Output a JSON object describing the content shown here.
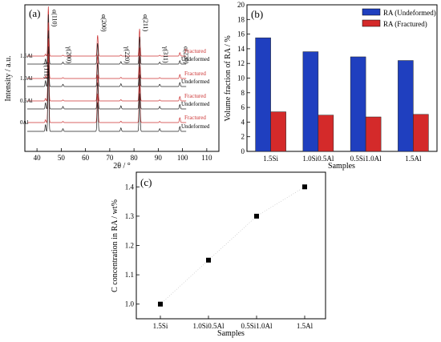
{
  "chart_data": [
    {
      "type": "line",
      "panel_label": "(a)",
      "xlabel": "2θ / °",
      "ylabel": "Intensity / a.u.",
      "xlim": [
        35,
        115
      ],
      "xticks": [
        40,
        50,
        60,
        70,
        80,
        90,
        100,
        110
      ],
      "tick_labels": [
        "40",
        "50",
        "60",
        "70",
        "80",
        "90",
        "100",
        "110"
      ],
      "peaks": [
        {
          "label": "γ(111)",
          "x": 43.5
        },
        {
          "label": "α(110)",
          "x": 44.7
        },
        {
          "label": "γ(200)",
          "x": 50.7
        },
        {
          "label": "α(200)",
          "x": 65.0
        },
        {
          "label": "γ(220)",
          "x": 74.6
        },
        {
          "label": "α(211)",
          "x": 82.3
        },
        {
          "label": "γ(311)",
          "x": 90.6
        },
        {
          "label": "α(220)",
          "x": 98.9
        }
      ],
      "samples": [
        "1.5Al",
        "1.0Al",
        "0.5Al",
        "0Al"
      ],
      "series": [
        {
          "name": "Fractured",
          "color": "#cc3333"
        },
        {
          "name": "Undeformed",
          "color": "#222222"
        }
      ]
    },
    {
      "type": "bar",
      "panel_label": "(b)",
      "categories": [
        "1.5Si",
        "1.0Si0.5Al",
        "0.5Si1.0Al",
        "1.5Al"
      ],
      "series": [
        {
          "name": "RA (Undeformed)",
          "values": [
            15.5,
            13.6,
            12.9,
            12.4
          ],
          "color": "#1f3fbf"
        },
        {
          "name": "RA (Fractured)",
          "values": [
            5.4,
            4.95,
            4.7,
            5.05
          ],
          "color": "#d42a2a"
        }
      ],
      "xlabel": "Samples",
      "ylabel": "Volume fraction of RA / %",
      "ylim": [
        0,
        20
      ],
      "yticks": [
        0,
        2,
        4,
        6,
        8,
        10,
        12,
        14,
        16,
        18,
        20
      ],
      "legend": "top-right"
    },
    {
      "type": "scatter",
      "panel_label": "(c)",
      "categories": [
        "1.5Si",
        "1.0Si0.5Al",
        "0.5Si1.0Al",
        "1.5Al"
      ],
      "values": [
        1.0,
        1.15,
        1.3,
        1.4
      ],
      "xlabel": "Samples",
      "ylabel": "C concentration in RA / wt%",
      "ylim": [
        0.95,
        1.45
      ],
      "yticks": [
        1.0,
        1.1,
        1.2,
        1.3,
        1.4
      ],
      "ytick_labels": [
        "1.0",
        "1.1",
        "1.2",
        "1.3",
        "1.4"
      ]
    }
  ]
}
